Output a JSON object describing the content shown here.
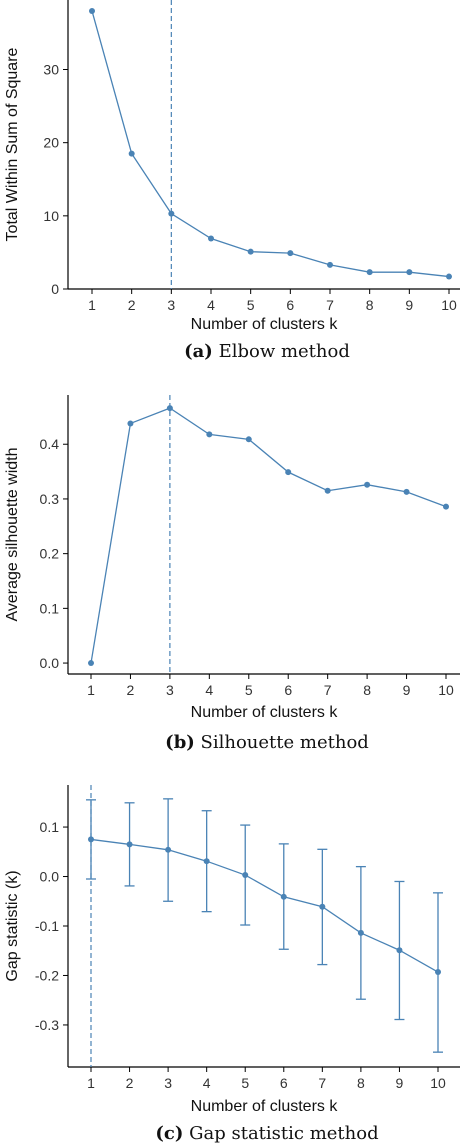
{
  "colors": {
    "series": "#4A83B5",
    "axis": "#000000"
  },
  "chart_data": [
    {
      "type": "line",
      "caption_tag": "(a)",
      "caption": "Elbow method",
      "xlabel": "Number of clusters k",
      "ylabel": "Total Within Sum of Square",
      "x": [
        1,
        2,
        3,
        4,
        5,
        6,
        7,
        8,
        9,
        10
      ],
      "values": [
        38.0,
        18.5,
        10.3,
        6.9,
        5.1,
        4.9,
        3.3,
        2.3,
        2.3,
        1.7
      ],
      "ylim": [
        0,
        39.5
      ],
      "yticks": [
        0,
        10,
        20,
        30
      ],
      "optimal_k": 3,
      "grid": false
    },
    {
      "type": "line",
      "caption_tag": "(b)",
      "caption": "Silhouette method",
      "xlabel": "Number of clusters k",
      "ylabel": "Average silhouette width",
      "x": [
        1,
        2,
        3,
        4,
        5,
        6,
        7,
        8,
        9,
        10
      ],
      "values": [
        0.0,
        0.438,
        0.466,
        0.418,
        0.409,
        0.349,
        0.315,
        0.326,
        0.313,
        0.286
      ],
      "ylim": [
        -0.02,
        0.49
      ],
      "yticks": [
        "0.0",
        "0.1",
        "0.2",
        "0.3",
        "0.4"
      ],
      "optimal_k": 3,
      "grid": false
    },
    {
      "type": "line",
      "caption_tag": "(c)",
      "caption": "Gap statistic method",
      "xlabel": "Number of clusters k",
      "ylabel": "Gap statistic (k)",
      "x": [
        1,
        2,
        3,
        4,
        5,
        6,
        7,
        8,
        9,
        10
      ],
      "values": [
        0.075,
        0.065,
        0.054,
        0.031,
        0.003,
        -0.041,
        -0.061,
        -0.114,
        -0.149,
        -0.193
      ],
      "error_low": [
        -0.005,
        -0.019,
        -0.05,
        -0.071,
        -0.098,
        -0.147,
        -0.178,
        -0.248,
        -0.289,
        -0.355
      ],
      "error_high": [
        0.155,
        0.149,
        0.157,
        0.133,
        0.104,
        0.066,
        0.055,
        0.02,
        -0.01,
        -0.033
      ],
      "ylim": [
        -0.385,
        0.185
      ],
      "yticks": [
        "-0.3",
        "-0.2",
        "-0.1",
        "0.0",
        "0.1"
      ],
      "optimal_k": 1,
      "grid": false
    }
  ]
}
